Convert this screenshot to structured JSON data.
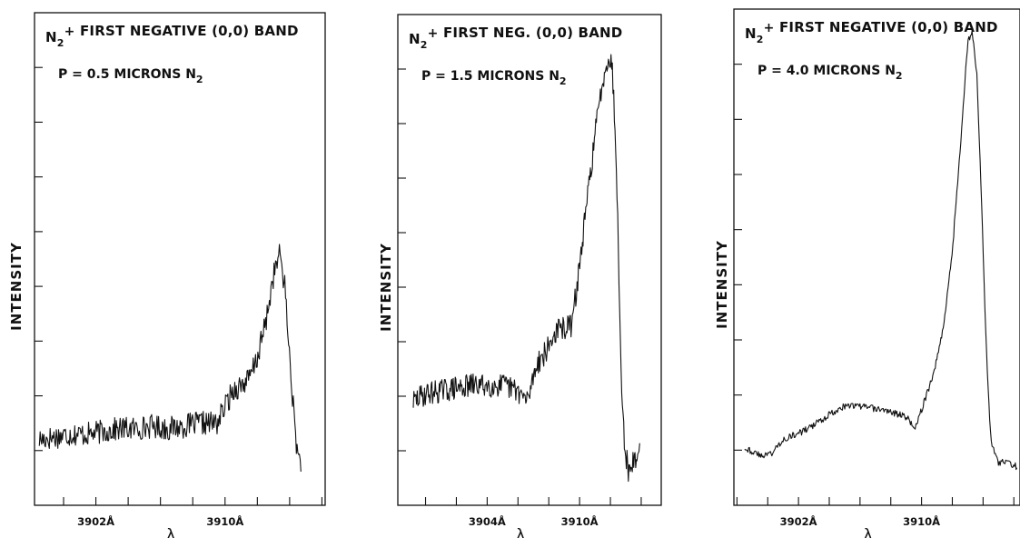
{
  "chart_data": [
    {
      "type": "line",
      "title": "N2+ FIRST NEGATIVE (0,0) BAND",
      "condition": "P = 0.5 MICRONS N2",
      "ylabel": "INTENSITY",
      "xlabel": "λ",
      "x_tick_labels": [
        "3902Å",
        "3910Å"
      ],
      "x_tick_values": [
        3902,
        3910
      ],
      "xlim": [
        3898.2,
        3916.2
      ],
      "ylim": [
        0,
        9
      ],
      "grid": false,
      "series": [
        {
          "x": [
            3898.5,
            3899.5,
            3900.5,
            3901.5,
            3902.5,
            3903.5,
            3904.5,
            3905.5,
            3906.5,
            3907.5,
            3908.5,
            3909.5,
            3910.0,
            3910.5,
            3911.0,
            3911.5,
            3912.0,
            3912.5,
            3913.0,
            3913.4,
            3913.7,
            3914.0,
            3914.3,
            3914.5,
            3914.7
          ],
          "y": [
            1.2,
            1.25,
            1.3,
            1.3,
            1.35,
            1.4,
            1.4,
            1.45,
            1.4,
            1.45,
            1.5,
            1.5,
            1.8,
            2.1,
            2.2,
            2.3,
            2.7,
            3.3,
            4.2,
            4.6,
            4.0,
            2.7,
            1.5,
            0.9,
            0.8
          ]
        }
      ]
    },
    {
      "type": "line",
      "title": "N2+ FIRST NEG. (0,0) BAND",
      "condition": "P = 1.5 MICRONS N2",
      "ylabel": "INTENSITY",
      "xlabel": "λ",
      "x_tick_labels": [
        "3904Å",
        "3910Å"
      ],
      "x_tick_values": [
        3904,
        3910
      ],
      "xlim": [
        3898.2,
        3915.3
      ],
      "ylim": [
        0,
        9
      ],
      "grid": false,
      "series": [
        {
          "x": [
            3899.2,
            3900.0,
            3901.0,
            3902.0,
            3903.0,
            3904.0,
            3905.0,
            3906.0,
            3906.6,
            3907.2,
            3907.8,
            3908.5,
            3909.5,
            3910.0,
            3910.5,
            3911.0,
            3911.5,
            3911.8,
            3912.1,
            3912.3,
            3912.5,
            3912.7,
            3912.9,
            3913.2,
            3913.5,
            3913.9
          ],
          "y": [
            1.9,
            2.05,
            2.1,
            2.15,
            2.2,
            2.2,
            2.2,
            2.1,
            1.9,
            2.6,
            2.8,
            3.2,
            3.3,
            4.4,
            5.6,
            6.8,
            7.8,
            8.2,
            8.1,
            7.0,
            5.0,
            2.5,
            1.1,
            0.6,
            0.8,
            1.0
          ]
        }
      ]
    },
    {
      "type": "line",
      "title": "N2+ FIRST NEGATIVE (0,0) BAND",
      "condition": "P = 4.0 MICRONS N2",
      "ylabel": "INTENSITY",
      "xlabel": "λ",
      "x_tick_labels": [
        "3902Å",
        "3910Å"
      ],
      "x_tick_values": [
        3902,
        3910
      ],
      "xlim": [
        3897.8,
        3916.4
      ],
      "ylim": [
        0,
        9
      ],
      "grid": false,
      "series": [
        {
          "x": [
            3898.5,
            3899.5,
            3900.3,
            3901.0,
            3902.0,
            3903.0,
            3904.0,
            3905.0,
            3906.0,
            3907.0,
            3908.0,
            3909.0,
            3909.6,
            3910.2,
            3910.8,
            3911.4,
            3912.0,
            3912.6,
            3913.0,
            3913.3,
            3913.6,
            3913.9,
            3914.2,
            3914.5,
            3915.0,
            3915.5,
            3916.2
          ],
          "y": [
            1.05,
            0.9,
            0.95,
            1.2,
            1.3,
            1.45,
            1.65,
            1.8,
            1.8,
            1.75,
            1.7,
            1.6,
            1.4,
            1.9,
            2.4,
            3.2,
            4.6,
            6.8,
            8.4,
            8.6,
            7.8,
            5.5,
            2.9,
            1.2,
            0.75,
            0.8,
            0.7
          ]
        }
      ]
    }
  ]
}
